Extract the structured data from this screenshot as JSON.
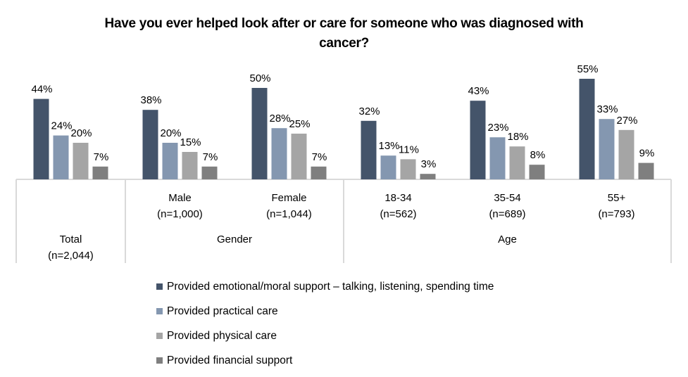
{
  "chart_data": {
    "type": "bar",
    "title": "Have you ever helped look after or care for someone who was diagnosed with cancer?",
    "title_lines": [
      "Have you ever helped look after or care for someone who was diagnosed with",
      "cancer?"
    ],
    "xlabel": "",
    "ylabel": "",
    "ylim": [
      0,
      60
    ],
    "grid": false,
    "value_format": "percent",
    "categories": [
      {
        "label": "Total",
        "n": "(n=2,044)",
        "group": ""
      },
      {
        "label": "Male",
        "n": "(n=1,000)",
        "group": "Gender"
      },
      {
        "label": "Female",
        "n": "(n=1,044)",
        "group": "Gender"
      },
      {
        "label": "18-34",
        "n": "(n=562)",
        "group": "Age"
      },
      {
        "label": "35-54",
        "n": "(n=689)",
        "group": "Age"
      },
      {
        "label": "55+",
        "n": "(n=793)",
        "group": "Age"
      }
    ],
    "groups": [
      {
        "name": "Total",
        "label": "Total",
        "sublabel": "(n=2,044)",
        "span": [
          0,
          0
        ]
      },
      {
        "name": "Gender",
        "label": "Gender",
        "sublabel": "",
        "span": [
          1,
          2
        ]
      },
      {
        "name": "Age",
        "label": "Age",
        "sublabel": "",
        "span": [
          3,
          5
        ]
      }
    ],
    "series": [
      {
        "name": "Provided emotional/moral support – talking, listening, spending time",
        "color": "#44546A",
        "values": [
          44,
          38,
          50,
          32,
          43,
          55
        ]
      },
      {
        "name": "Provided practical care",
        "color": "#8497B0",
        "values": [
          24,
          20,
          28,
          13,
          23,
          33
        ]
      },
      {
        "name": "Provided physical care",
        "color": "#A5A5A5",
        "values": [
          20,
          15,
          25,
          11,
          18,
          27
        ]
      },
      {
        "name": "Provided financial support",
        "color": "#7F7F7F",
        "values": [
          7,
          7,
          7,
          3,
          8,
          9
        ]
      }
    ],
    "legend_position": "bottom"
  }
}
